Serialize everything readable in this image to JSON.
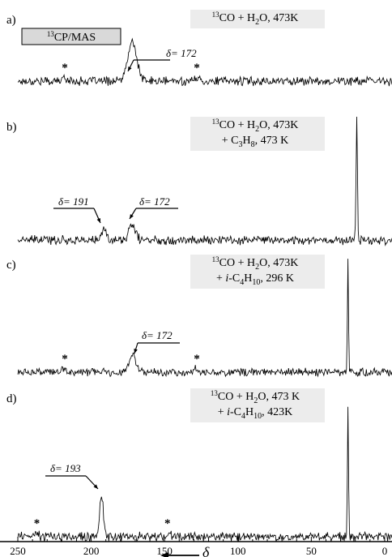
{
  "chart_data": {
    "type": "line",
    "xlabel": "δ",
    "xlim": [
      250,
      -5
    ],
    "xticks": [
      250,
      200,
      150,
      100,
      50,
      0
    ],
    "technique": "13CP/MAS",
    "panels": [
      {
        "id": "a",
        "label": "a)",
        "conditions": [
          "13CO + H2O, 473K"
        ],
        "peaks": [
          {
            "delta": 172,
            "height": 0.32,
            "width": 3.0
          }
        ],
        "annotations": [
          {
            "text": "δ= 172",
            "delta": 172
          }
        ],
        "sidebands": [
          218,
          128
        ]
      },
      {
        "id": "b",
        "label": "b)",
        "conditions": [
          "13CO + H2O, 473K",
          "+ C3H8, 473 K"
        ],
        "peaks": [
          {
            "delta": 191,
            "height": 0.1,
            "width": 1.3
          },
          {
            "delta": 172,
            "height": 0.12,
            "width": 2.2
          },
          {
            "delta": 19,
            "height": 1.0,
            "width": 0.45
          }
        ],
        "annotations": [
          {
            "text": "δ= 191",
            "delta": 191
          },
          {
            "text": "δ= 172",
            "delta": 172
          }
        ],
        "sidebands": []
      },
      {
        "id": "c",
        "label": "c)",
        "conditions": [
          "13CO + H2O, 473K",
          "+ i-C4H10, 296 K"
        ],
        "peaks": [
          {
            "delta": 172,
            "height": 0.16,
            "width": 2.2
          },
          {
            "delta": 25,
            "height": 1.0,
            "width": 0.35
          }
        ],
        "annotations": [
          {
            "text": "δ= 172",
            "delta": 172
          }
        ],
        "sidebands": [
          218,
          128
        ]
      },
      {
        "id": "d",
        "label": "d)",
        "conditions": [
          "13CO + H2O, 473 K",
          "+ i-C4H10, 423K"
        ],
        "peaks": [
          {
            "delta": 193,
            "height": 0.31,
            "width": 1.3
          },
          {
            "delta": 25,
            "height": 1.0,
            "width": 0.35
          }
        ],
        "annotations": [
          {
            "text": "δ= 193",
            "delta": 193
          }
        ],
        "sidebands": [
          237,
          148
        ]
      }
    ]
  }
}
